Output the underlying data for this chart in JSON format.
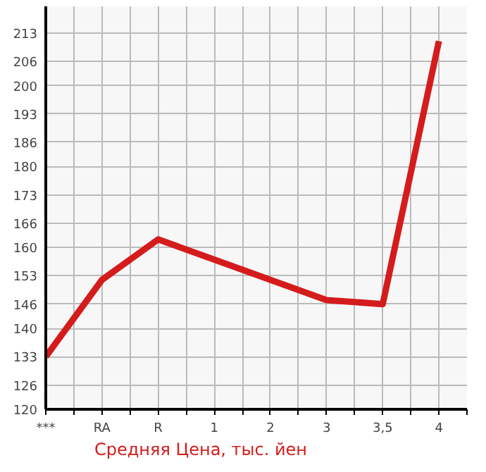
{
  "chart_data": {
    "type": "line",
    "categories": [
      "***",
      "RA",
      "R",
      "1",
      "2",
      "3",
      "3,5",
      "4"
    ],
    "series": [
      {
        "name": "Средняя Цена, тыс. йен",
        "color": "#d41c1c",
        "values": [
          133,
          152,
          162,
          157,
          152,
          147,
          146,
          211
        ]
      }
    ],
    "ylim": [
      120,
      219.6
    ],
    "yticks": [
      120,
      126,
      133,
      140,
      146,
      153,
      160,
      166,
      173,
      180,
      186,
      193,
      200,
      206,
      213
    ],
    "grid": true,
    "legend": "bottom",
    "marker": "none",
    "line_style": "solid"
  }
}
